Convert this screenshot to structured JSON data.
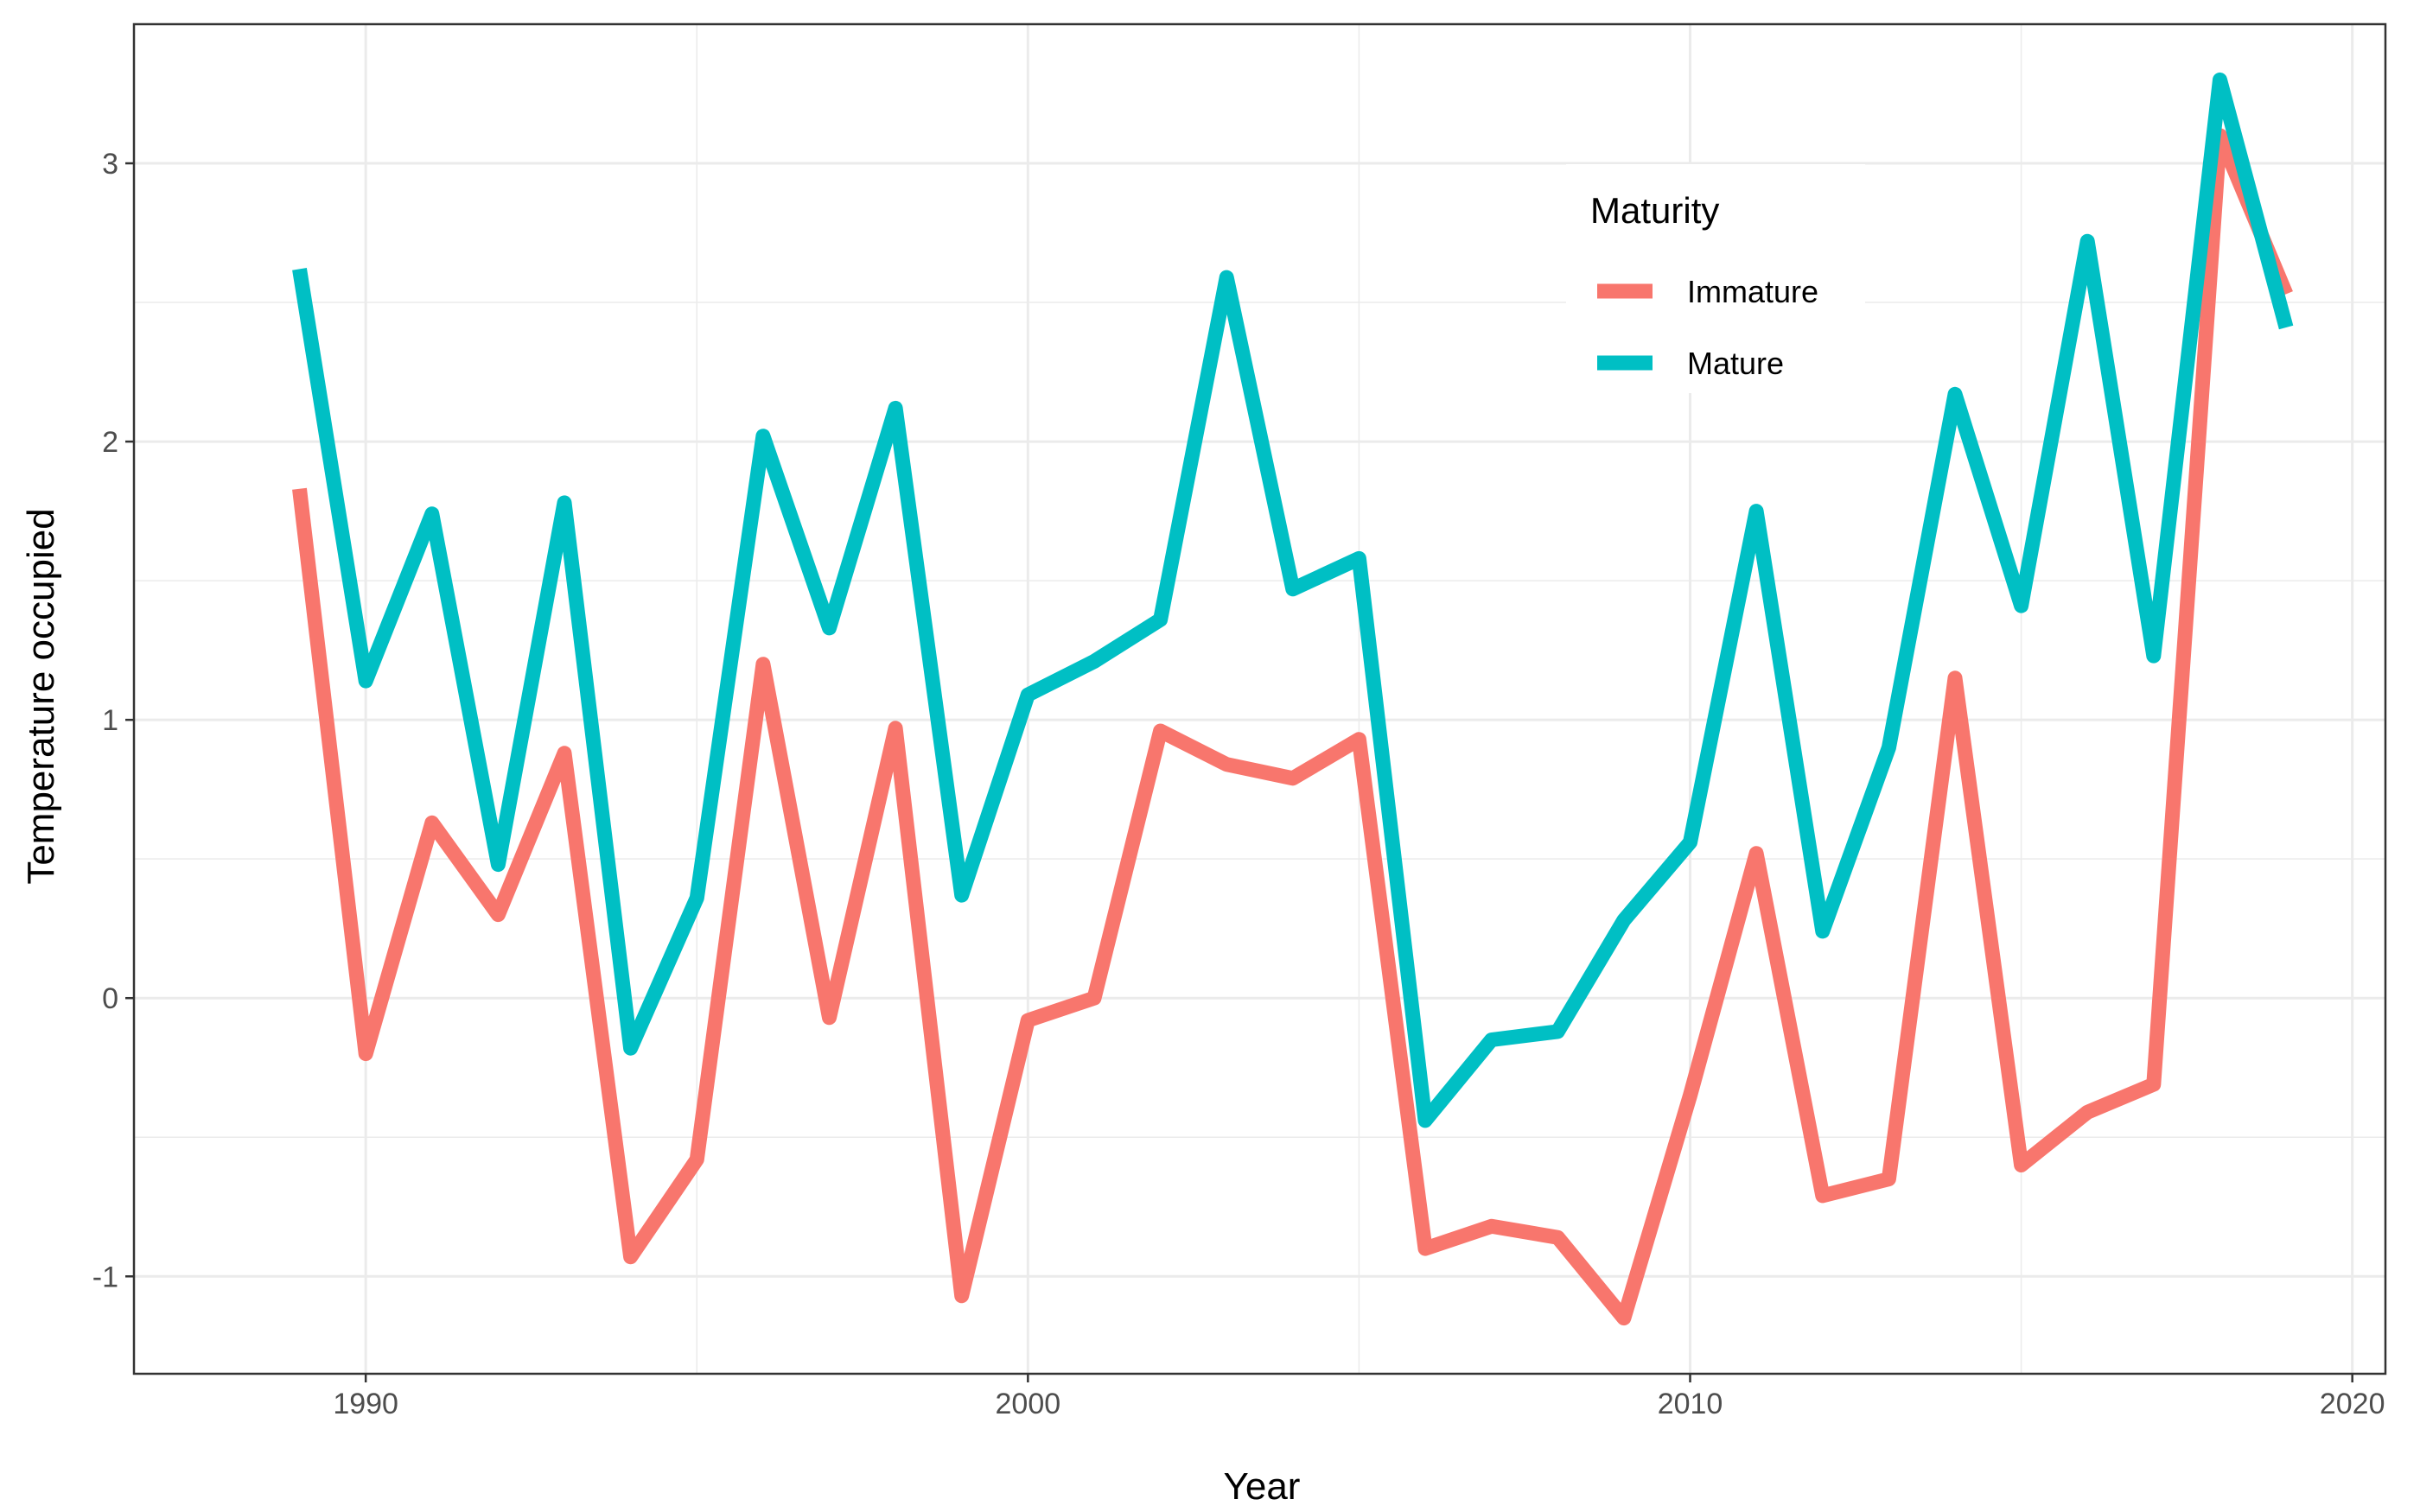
{
  "chart_data": {
    "type": "line",
    "title": "",
    "xlabel": "Year",
    "ylabel": "Temperature occupied",
    "xlim": [
      1986.5,
      2020.5
    ],
    "ylim": [
      -1.35,
      3.5
    ],
    "x_ticks": [
      1990,
      2000,
      2010,
      2020
    ],
    "x_tick_labels": [
      "1990",
      "2000",
      "2010",
      "2020"
    ],
    "y_ticks": [
      -1,
      0,
      1,
      2,
      3
    ],
    "y_tick_labels": [
      "-1",
      "0",
      "1",
      "2",
      "3"
    ],
    "grid": true,
    "legend": {
      "title": "Maturity",
      "position": "top-right"
    },
    "x": [
      1989,
      1990,
      1991,
      1992,
      1993,
      1994,
      1995,
      1996,
      1997,
      1998,
      1999,
      2000,
      2001,
      2002,
      2003,
      2004,
      2005,
      2006,
      2007,
      2008,
      2009,
      2010,
      2011,
      2012,
      2013,
      2014,
      2015,
      2016,
      2017,
      2018,
      2019
    ],
    "series": [
      {
        "name": "Immature",
        "color": "#F8766D",
        "values": [
          1.83,
          -0.2,
          0.63,
          0.3,
          0.88,
          -0.93,
          -0.58,
          1.2,
          -0.07,
          0.97,
          -1.07,
          -0.08,
          0.0,
          0.96,
          0.84,
          0.79,
          0.93,
          -0.9,
          -0.82,
          -0.86,
          -1.15,
          -0.35,
          0.52,
          -0.71,
          -0.65,
          1.15,
          -0.6,
          -0.41,
          -0.31,
          3.1,
          2.53
        ]
      },
      {
        "name": "Mature",
        "color": "#00BFC4",
        "values": [
          2.62,
          1.14,
          1.74,
          0.48,
          1.78,
          -0.18,
          0.36,
          2.02,
          1.33,
          2.12,
          0.37,
          1.09,
          1.21,
          1.36,
          2.59,
          1.47,
          1.58,
          -0.44,
          -0.15,
          -0.12,
          0.28,
          0.56,
          1.75,
          0.24,
          0.9,
          2.17,
          1.41,
          2.72,
          1.23,
          3.3,
          2.41
        ]
      }
    ]
  }
}
